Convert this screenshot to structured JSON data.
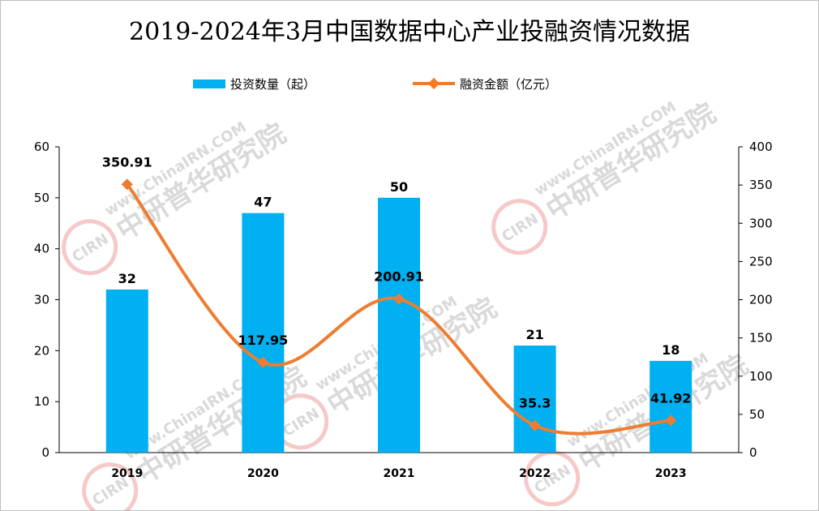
{
  "chart_data": {
    "type": "bar",
    "title": "2019-2024年3月中国数据中心产业投融资情况数据",
    "categories": [
      "2019",
      "2020",
      "2021",
      "2022",
      "2023"
    ],
    "series": [
      {
        "name": "投资数量（起）",
        "type": "bar",
        "axis": "left",
        "values": [
          32,
          47,
          50,
          21,
          18
        ],
        "color": "#00b0f0"
      },
      {
        "name": "融资金额（亿元）",
        "type": "line",
        "axis": "right",
        "values": [
          350.91,
          117.95,
          200.91,
          35.3,
          41.92
        ],
        "color": "#ed7d31"
      }
    ],
    "y_left": {
      "min": 0,
      "max": 60,
      "ticks": [
        0,
        10,
        20,
        30,
        40,
        50,
        60
      ]
    },
    "y_right": {
      "min": 0,
      "max": 400,
      "ticks": [
        0,
        50,
        100,
        150,
        200,
        250,
        300,
        350,
        400
      ]
    },
    "legend_position": "top",
    "grid": false,
    "line_smooth": true
  },
  "watermark": {
    "url_text": "www.ChinaIRN.COM",
    "brand_text": "中研普华研究院",
    "logo_text": "CIRN"
  }
}
